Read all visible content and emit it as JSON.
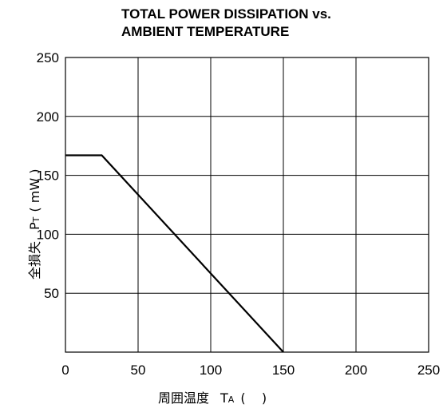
{
  "chart_data": {
    "type": "line",
    "title_lines": [
      "TOTAL POWER DISSIPATION vs.",
      "AMBIENT TEMPERATURE"
    ],
    "xlabel_main": "周囲温度",
    "xlabel_symbol": "T",
    "xlabel_subscript": "A",
    "xlabel_unit": "(    )",
    "ylabel_main": "全損失",
    "ylabel_symbol": "P",
    "ylabel_subscript": "T",
    "ylabel_unit": "( mW )",
    "xlim": [
      0,
      250
    ],
    "ylim": [
      0,
      250
    ],
    "x_ticks": [
      0,
      50,
      100,
      150,
      200,
      250
    ],
    "y_ticks": [
      50,
      100,
      150,
      200,
      250
    ],
    "x_tick_labels": [
      "0",
      "50",
      "100",
      "150",
      "200",
      "250"
    ],
    "y_tick_labels": [
      "50",
      "100",
      "150",
      "200",
      "250"
    ],
    "grid": true,
    "series": [
      {
        "x": [
          0,
          25,
          150
        ],
        "y": [
          167,
          167,
          0
        ]
      }
    ],
    "colors": {
      "line": "#000000",
      "grid": "#000000",
      "frame": "#000000"
    }
  }
}
